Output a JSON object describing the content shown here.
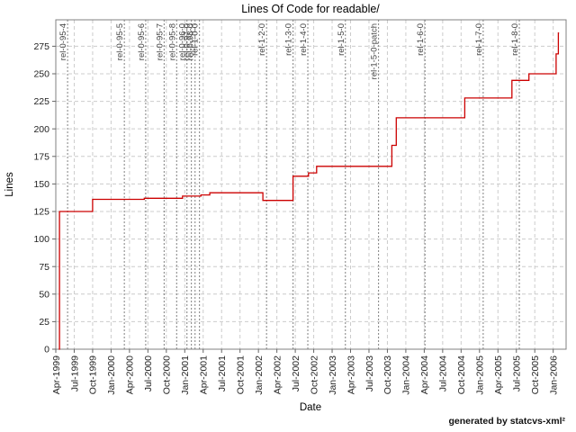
{
  "credit": "generated by statcvs-xml²",
  "chart_data": {
    "type": "line",
    "style": "step",
    "title": "Lines Of Code for readable/",
    "xlabel": "Date",
    "ylabel": "Lines",
    "grid": true,
    "legend": "none",
    "line_color": "#cc0000",
    "grid_color": "#cccccc",
    "release_line_color": "#808080",
    "x_domain": [
      1999.25,
      2006.175
    ],
    "x_end": 2006.08,
    "ylim": [
      0,
      299
    ],
    "y_ticks": [
      0,
      25,
      50,
      75,
      100,
      125,
      150,
      175,
      200,
      225,
      250,
      275
    ],
    "x_tick_labels": [
      "Apr-1999",
      "Jul-1999",
      "Oct-1999",
      "Jan-2000",
      "Apr-2000",
      "Jul-2000",
      "Oct-2000",
      "Jan-2001",
      "Apr-2001",
      "Jul-2001",
      "Oct-2001",
      "Jan-2002",
      "Apr-2002",
      "Jul-2002",
      "Oct-2002",
      "Jan-2003",
      "Apr-2003",
      "Jul-2003",
      "Oct-2003",
      "Jan-2004",
      "Apr-2004",
      "Jul-2004",
      "Oct-2004",
      "Jan-2005",
      "Apr-2005",
      "Jul-2005",
      "Oct-2005",
      "Jan-2006"
    ],
    "x_tick_step": 0.25,
    "series": [
      {
        "name": "Lines Of Code",
        "points": [
          [
            1999.29,
            0
          ],
          [
            1999.3,
            125
          ],
          [
            1999.75,
            136
          ],
          [
            2000.45,
            137
          ],
          [
            2000.97,
            139
          ],
          [
            2001.22,
            140
          ],
          [
            2001.34,
            142
          ],
          [
            2002.06,
            135
          ],
          [
            2002.47,
            157
          ],
          [
            2002.68,
            160
          ],
          [
            2002.79,
            166
          ],
          [
            2003.81,
            185
          ],
          [
            2003.87,
            210
          ],
          [
            2004.8,
            228
          ],
          [
            2005.44,
            244
          ],
          [
            2005.67,
            250
          ],
          [
            2006.04,
            268
          ],
          [
            2006.07,
            287
          ]
        ]
      }
    ],
    "releases": [
      {
        "label": "rel-0-95-4",
        "t": 1999.41
      },
      {
        "label": "rel-0-95-5",
        "t": 2000.18
      },
      {
        "label": "rel-0-95-6",
        "t": 2000.47
      },
      {
        "label": "rel-0-95-7",
        "t": 2000.72
      },
      {
        "label": "rel-0-95-8",
        "t": 2000.89
      },
      {
        "label": "rel-0-96-0",
        "t": 2001.03
      },
      {
        "label": "rel-0-97-0",
        "t": 2001.09
      },
      {
        "label": "rel-0-98-0",
        "t": 2001.14
      },
      {
        "label": "rel-1-0-0",
        "t": 2001.2
      },
      {
        "label": "rel-1-2-0",
        "t": 2002.11
      },
      {
        "label": "rel-1-3-0",
        "t": 2002.47
      },
      {
        "label": "rel-1-4-0",
        "t": 2002.67
      },
      {
        "label": "rel-1-5-0",
        "t": 2003.18
      },
      {
        "label": "rel-1-5-0-patch",
        "t": 2003.63
      },
      {
        "label": "rel-1-6-0",
        "t": 2004.26
      },
      {
        "label": "rel-1-7-0",
        "t": 2005.05
      },
      {
        "label": "rel-1-8-0",
        "t": 2005.54
      }
    ]
  }
}
